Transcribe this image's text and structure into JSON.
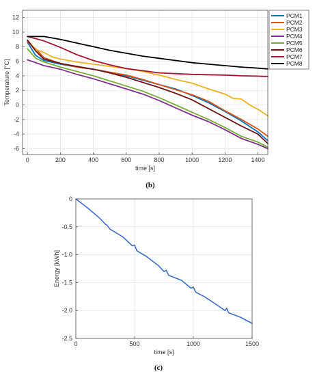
{
  "chart_data": [
    {
      "type": "line",
      "panel_label": "(b)",
      "xlabel": "time [s]",
      "ylabel": "Temperature [°C]",
      "xlim": [
        -30,
        1460
      ],
      "ylim": [
        -6.8,
        13
      ],
      "xticks": [
        0,
        200,
        400,
        600,
        800,
        1000,
        1200,
        1400
      ],
      "yticks": [
        -6,
        -4,
        -2,
        0,
        2,
        4,
        6,
        8,
        10,
        12
      ],
      "grid": true,
      "legend_position": "outside-right",
      "series": [
        {
          "name": "PCM1",
          "color": "#0072BD",
          "x": [
            0,
            50,
            100,
            200,
            300,
            400,
            500,
            600,
            700,
            800,
            900,
            1000,
            1100,
            1200,
            1300,
            1400,
            1460
          ],
          "y": [
            8.6,
            6.8,
            6.1,
            5.6,
            5.2,
            4.9,
            4.5,
            4.0,
            3.4,
            2.8,
            2.2,
            1.3,
            0.3,
            -0.9,
            -2.2,
            -3.7,
            -4.9
          ]
        },
        {
          "name": "PCM2",
          "color": "#D95319",
          "x": [
            0,
            50,
            100,
            200,
            300,
            400,
            500,
            600,
            700,
            800,
            900,
            1000,
            1100,
            1200,
            1300,
            1400,
            1460
          ],
          "y": [
            8.7,
            7.7,
            6.5,
            5.7,
            5.2,
            4.9,
            4.5,
            4.1,
            3.5,
            2.8,
            2.1,
            1.4,
            0.5,
            -0.8,
            -2.0,
            -3.3,
            -4.3
          ]
        },
        {
          "name": "PCM3",
          "color": "#EDB120",
          "x": [
            0,
            50,
            100,
            150,
            200,
            300,
            400,
            500,
            600,
            700,
            800,
            900,
            1000,
            1100,
            1200,
            1250,
            1300,
            1350,
            1400,
            1460
          ],
          "y": [
            8.9,
            7.6,
            7.2,
            6.6,
            6.3,
            5.9,
            5.6,
            5.3,
            5.0,
            4.6,
            4.1,
            3.5,
            3.0,
            2.2,
            1.5,
            0.9,
            0.8,
            0.0,
            -0.6,
            -1.5
          ]
        },
        {
          "name": "PCM4",
          "color": "#7E2F8E",
          "x": [
            0,
            50,
            100,
            200,
            300,
            400,
            500,
            600,
            700,
            800,
            900,
            1000,
            1100,
            1200,
            1300,
            1400,
            1460
          ],
          "y": [
            6.2,
            5.8,
            5.4,
            4.9,
            4.2,
            3.6,
            2.9,
            2.2,
            1.5,
            0.6,
            -0.4,
            -1.4,
            -2.3,
            -3.4,
            -4.6,
            -5.4,
            -6.0
          ]
        },
        {
          "name": "PCM5",
          "color": "#77AC30",
          "x": [
            0,
            50,
            100,
            200,
            300,
            400,
            500,
            600,
            700,
            800,
            900,
            1000,
            1100,
            1200,
            1300,
            1400,
            1460
          ],
          "y": [
            7.7,
            6.4,
            5.9,
            5.2,
            4.6,
            4.0,
            3.3,
            2.6,
            1.9,
            1.0,
            0.0,
            -1.0,
            -2.0,
            -3.1,
            -4.3,
            -5.1,
            -5.8
          ]
        },
        {
          "name": "PCM6",
          "color": "#6B1414",
          "x": [
            0,
            50,
            100,
            200,
            300,
            400,
            500,
            600,
            700,
            800,
            900,
            1000,
            1100,
            1200,
            1300,
            1400,
            1460
          ],
          "y": [
            8.9,
            7.4,
            6.3,
            5.7,
            5.3,
            4.9,
            4.4,
            3.8,
            3.1,
            2.4,
            1.6,
            0.7,
            -0.5,
            -1.7,
            -2.9,
            -4.0,
            -5.3
          ]
        },
        {
          "name": "PCM7",
          "color": "#A2142F",
          "x": [
            0,
            100,
            200,
            300,
            400,
            500,
            600,
            700,
            800,
            900,
            1000,
            1100,
            1200,
            1300,
            1400,
            1460
          ],
          "y": [
            9.4,
            8.8,
            7.9,
            6.9,
            6.1,
            5.5,
            5.0,
            4.7,
            4.4,
            4.3,
            4.2,
            4.15,
            4.1,
            4.0,
            3.95,
            3.9
          ]
        },
        {
          "name": "PCM8",
          "color": "#000000",
          "x": [
            0,
            100,
            200,
            300,
            400,
            500,
            600,
            700,
            800,
            900,
            1000,
            1100,
            1200,
            1300,
            1400,
            1460
          ],
          "y": [
            9.4,
            9.4,
            9.0,
            8.5,
            8.0,
            7.5,
            7.1,
            6.7,
            6.4,
            6.1,
            5.8,
            5.6,
            5.4,
            5.2,
            5.05,
            4.95
          ]
        }
      ]
    },
    {
      "type": "line",
      "panel_label": "(c)",
      "xlabel": "time [s]",
      "ylabel": "Energy [kWh]",
      "xlim": [
        0,
        1500
      ],
      "ylim": [
        -2.5,
        0
      ],
      "xticks": [
        0,
        500,
        1000,
        1500
      ],
      "yticks": [
        0,
        -0.5,
        -1.0,
        -1.5,
        -2.0,
        -2.5
      ],
      "ytick_labels": [
        "0",
        "-0.5",
        "-1.0",
        "-1.5",
        "-2.0",
        "-2.5"
      ],
      "grid": true,
      "series": [
        {
          "color": "#3A6EC4",
          "x": [
            0,
            100,
            200,
            250,
            270,
            290,
            400,
            480,
            500,
            520,
            600,
            700,
            750,
            770,
            790,
            900,
            980,
            1000,
            1020,
            1100,
            1200,
            1270,
            1285,
            1300,
            1400,
            1500
          ],
          "y": [
            0,
            -0.16,
            -0.34,
            -0.45,
            -0.48,
            -0.54,
            -0.68,
            -0.84,
            -0.83,
            -0.93,
            -1.03,
            -1.19,
            -1.3,
            -1.28,
            -1.37,
            -1.46,
            -1.6,
            -1.58,
            -1.67,
            -1.76,
            -1.9,
            -2.0,
            -1.96,
            -2.04,
            -2.12,
            -2.23
          ]
        }
      ]
    }
  ]
}
